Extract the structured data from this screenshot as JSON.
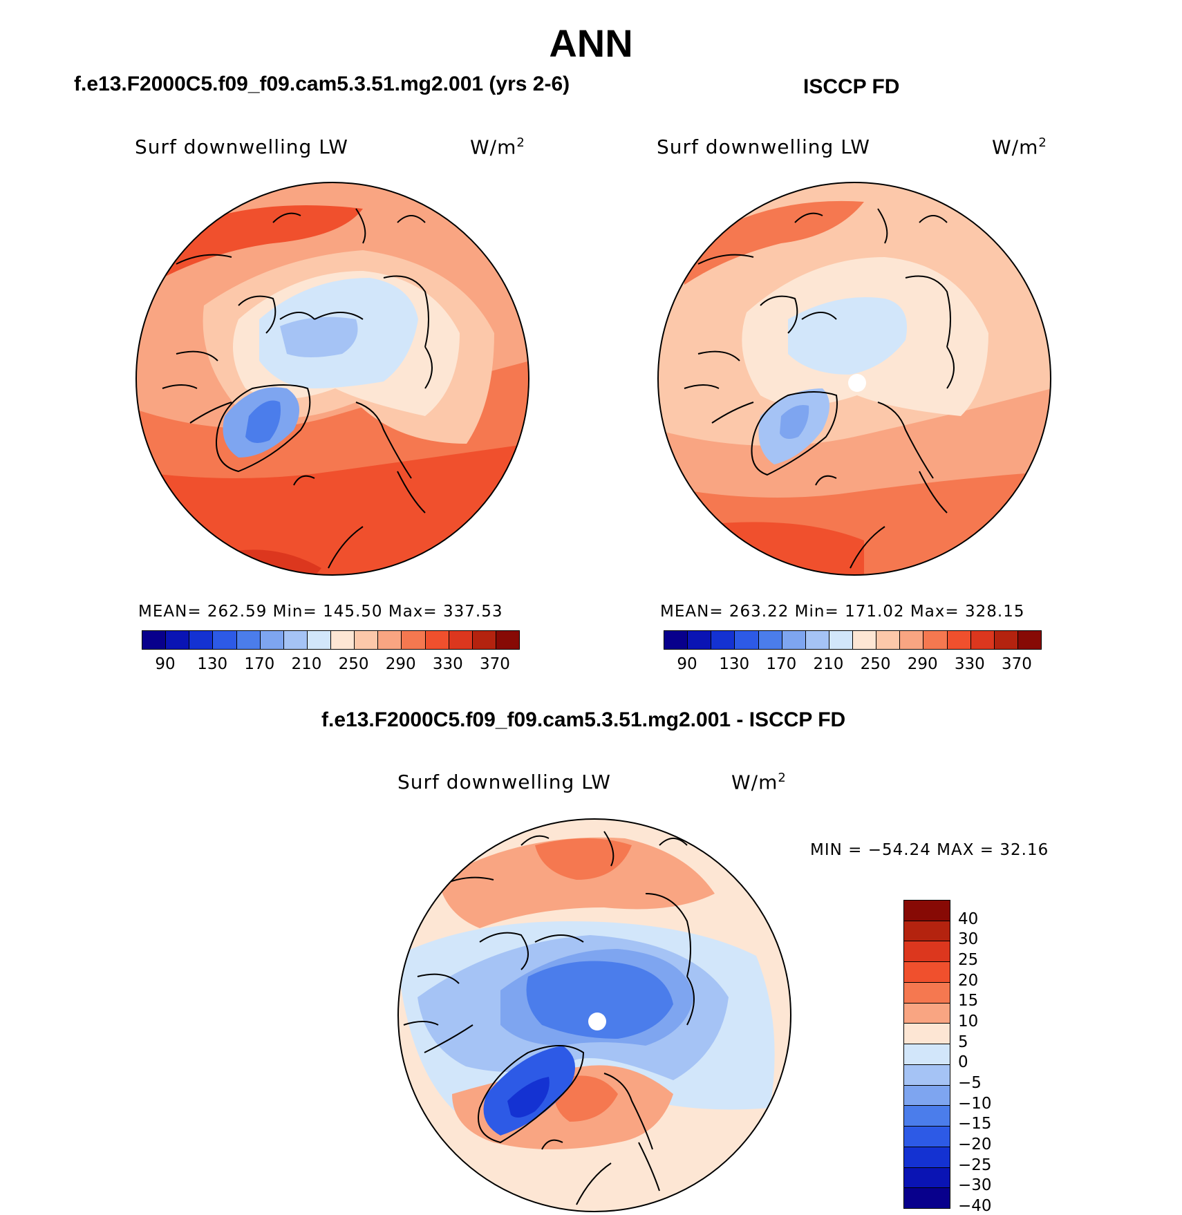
{
  "main_title": "ANN",
  "panels": [
    {
      "title": "f.e13.F2000C5.f09_f09.cam5.3.51.mg2.001 (yrs 2-6)",
      "variable": "Surf downwelling LW",
      "units": "W/m",
      "units_sup": "2",
      "stats": "MEAN= 262.59   Min= 145.50   Max= 337.53"
    },
    {
      "title": "ISCCP FD",
      "variable": "Surf downwelling LW",
      "units": "W/m",
      "units_sup": "2",
      "stats": "MEAN= 263.22   Min= 171.02   Max= 328.15"
    },
    {
      "title": "f.e13.F2000C5.f09_f09.cam5.3.51.mg2.001 - ISCCP FD",
      "variable": "Surf downwelling LW",
      "units": "W/m",
      "units_sup": "2",
      "stats": "MIN = −54.24 MAX =   32.16"
    }
  ],
  "colorbar_abs": {
    "colors": [
      "#08008c",
      "#0a14b4",
      "#1432d2",
      "#2d5ae6",
      "#4b7deb",
      "#7ea5f0",
      "#a5c3f5",
      "#d2e6fa",
      "#fde6d4",
      "#fcc8aa",
      "#f9a582",
      "#f57850",
      "#f0502d",
      "#dc371e",
      "#b4230f",
      "#870a05"
    ],
    "tick_labels": [
      "90",
      "130",
      "170",
      "210",
      "250",
      "290",
      "330",
      "370"
    ]
  },
  "colorbar_diff": {
    "colors": [
      "#870a05",
      "#b4230f",
      "#dc371e",
      "#f0502d",
      "#f57850",
      "#f9a582",
      "#fde6d4",
      "#d2e6fa",
      "#a5c3f5",
      "#7ea5f0",
      "#4b7deb",
      "#2d5ae6",
      "#1432d2",
      "#0a14b4",
      "#08008c"
    ],
    "tick_labels": [
      "40",
      "30",
      "25",
      "20",
      "15",
      "10",
      "5",
      "0",
      "−5",
      "−10",
      "−15",
      "−20",
      "−25",
      "−30",
      "−40"
    ]
  }
}
